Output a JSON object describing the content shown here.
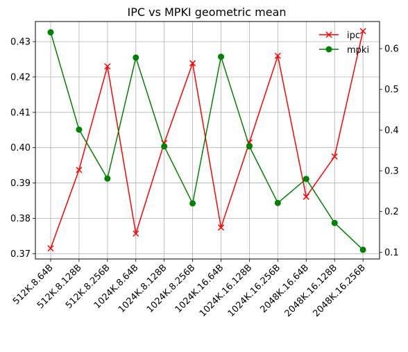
{
  "chart_data": {
    "type": "line",
    "title": "IPC vs MPKI geometric mean",
    "xlabel": "",
    "ylabel": "",
    "categories": [
      "512K.8.64B",
      "512K.8.128B",
      "512K.8.256B",
      "1024K.8.64B",
      "1024K.8.128B",
      "1024K.8.256B",
      "1024K.16.64B",
      "1024K.16.128B",
      "1024K.16.256B",
      "2048K.16.64B",
      "2048K.16.128B",
      "2048K.16.256B"
    ],
    "grid": true,
    "legend_position": "top-right",
    "y_left": {
      "ylim": [
        0.3685,
        0.4357
      ],
      "ticks": [
        0.37,
        0.38,
        0.39,
        0.4,
        0.41,
        0.42,
        0.43
      ],
      "tick_labels": [
        "0.37",
        "0.38",
        "0.39",
        "0.40",
        "0.41",
        "0.42",
        "0.43"
      ]
    },
    "y_right": {
      "ylim": [
        0.0835,
        0.6665
      ],
      "ticks": [
        0.1,
        0.2,
        0.3,
        0.4,
        0.5,
        0.6
      ],
      "tick_labels": [
        "0.1",
        "0.2",
        "0.3",
        "0.4",
        "0.5",
        "0.6"
      ]
    },
    "series": [
      {
        "name": "ipc",
        "axis": "left",
        "color": "#ff0000",
        "marker": "x",
        "values": [
          0.3715,
          0.3937,
          0.423,
          0.3757,
          0.4013,
          0.4239,
          0.3774,
          0.4015,
          0.426,
          0.3861,
          0.3975,
          0.433
        ]
      },
      {
        "name": "mpki",
        "axis": "right",
        "color": "#008000",
        "marker": "o",
        "values": [
          0.64,
          0.401,
          0.281,
          0.578,
          0.36,
          0.22,
          0.58,
          0.36,
          0.221,
          0.28,
          0.172,
          0.106
        ]
      }
    ]
  }
}
